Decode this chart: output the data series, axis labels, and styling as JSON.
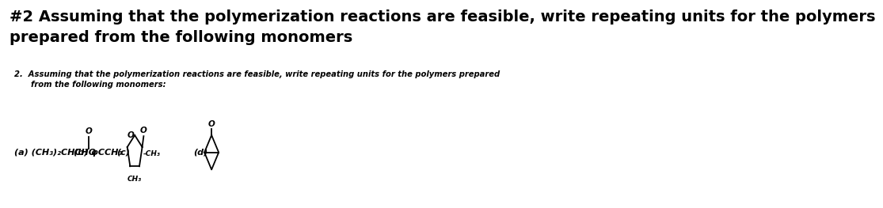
{
  "background_color": "#ffffff",
  "title_line1": "#2 Assuming that the polymerization reactions are feasible, write repeating units for the polymers",
  "title_line2": "prepared from the following monomers",
  "title_fontsize": 14,
  "title_color": "#000000",
  "subtitle_line1": "2.  Assuming that the polymerization reactions are feasible, write repeating units for the polymers prepared",
  "subtitle_line2": "      from the following monomers:",
  "subtitle_fontsize": 7.2,
  "label_a": "(a) (CH₃)₂CHCHO",
  "label_b_pre": "(b) φCCH₃",
  "label_c": "(c)",
  "label_d": "(d)",
  "ch3_right": "-CH₃",
  "ch3_bottom": "CH₃",
  "O_letter": "O",
  "label_fontsize": 8.0
}
